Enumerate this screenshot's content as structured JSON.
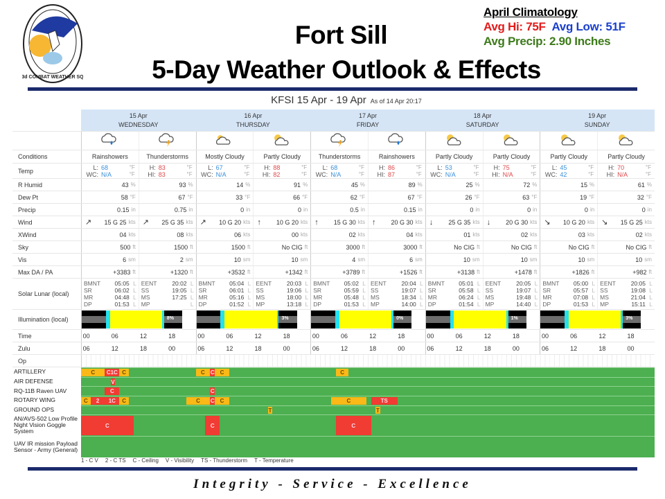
{
  "header": {
    "title_line1": "Fort Sill",
    "title_line2": "5-Day Weather Outlook & Effects",
    "logo_text": "3d COMBAT WEATHER SQ"
  },
  "climatology": {
    "heading": "April Climatology",
    "avg_hi": "Avg Hi: 75F",
    "avg_low": "Avg Low: 51F",
    "avg_precip": "Avg Precip: 2.90 Inches",
    "colors": {
      "hi": "#e21b1b",
      "low": "#1a3fcc",
      "precip": "#3d7a1a"
    }
  },
  "forecast": {
    "title": "KFSI 15 Apr - 19 Apr",
    "as_of": "As of 14 Apr 20:17"
  },
  "row_labels": {
    "conditions": "Conditions",
    "temp": "Temp",
    "rh": "R Humid",
    "dew": "Dew Pt",
    "precip": "Precip",
    "wind": "Wind",
    "xwind": "XWind",
    "sky": "Sky",
    "vis": "Vis",
    "da": "Max DA / PA",
    "solar": "Solar Lunar (local)",
    "illum": "Illumination (local)",
    "time": "Time",
    "zulu": "Zulu",
    "op": "Op"
  },
  "units": {
    "temp": "°F",
    "rh": "%",
    "dew": "°F",
    "precip": "in",
    "wind": "kts",
    "xwind": "kts",
    "sky": "ft",
    "vis": "sm",
    "da": "ft",
    "solar": "L"
  },
  "time_labels": [
    "00",
    "06",
    "12",
    "18"
  ],
  "zulu_labels": [
    "06",
    "12",
    "18",
    "00"
  ],
  "days": [
    {
      "date": "15 Apr",
      "dow": "WEDNESDAY",
      "illumination": "8%",
      "halves": [
        {
          "icon": "rain-showers-icon",
          "cond": "Rainshowers",
          "tk1": "L:",
          "tv1": "68",
          "tk2": "WC:",
          "tv2": "N/A",
          "rh": "43",
          "dew": "58",
          "precip": "0.15",
          "wdir": "↗",
          "wind": "15 G 25",
          "xwind": "04",
          "sky": "500",
          "vis": "6",
          "da": "+3383",
          "solar": [
            [
              "BMNT",
              "05:05"
            ],
            [
              "SR",
              "06:02"
            ],
            [
              "MR",
              "04:48"
            ],
            [
              "DP",
              "01:53"
            ]
          ]
        },
        {
          "icon": "thunderstorm-icon",
          "cond": "Thunderstorms",
          "tk1": "H:",
          "tv1": "83",
          "tk2": "HI:",
          "tv2": "83",
          "rh": "93",
          "dew": "67",
          "precip": "0.75",
          "wdir": "↗",
          "wind": "25 G 35",
          "xwind": "08",
          "sky": "1500",
          "vis": "2",
          "da": "+1320",
          "solar": [
            [
              "EENT",
              "20:02"
            ],
            [
              "SS",
              "19:05"
            ],
            [
              "MS",
              "17:25"
            ],
            [
              "MP",
              ""
            ]
          ]
        }
      ]
    },
    {
      "date": "16 Apr",
      "dow": "THURSDAY",
      "illumination": "3%",
      "halves": [
        {
          "icon": "mostly-cloudy-icon",
          "cond": "Mostly Cloudy",
          "tk1": "L:",
          "tv1": "67",
          "tk2": "WC:",
          "tv2": "N/A",
          "rh": "14",
          "dew": "33",
          "precip": "0",
          "wdir": "↗",
          "wind": "10 G 20",
          "xwind": "06",
          "sky": "1500",
          "vis": "10",
          "da": "+3532",
          "solar": [
            [
              "BMNT",
              "05:04"
            ],
            [
              "SR",
              "06:01"
            ],
            [
              "MR",
              "05:16"
            ],
            [
              "DP",
              "01:52"
            ]
          ]
        },
        {
          "icon": "partly-cloudy-icon",
          "cond": "Partly Cloudy",
          "tk1": "H:",
          "tv1": "88",
          "tk2": "HI:",
          "tv2": "82",
          "rh": "91",
          "dew": "66",
          "precip": "0",
          "wdir": "↑",
          "wind": "10 G 20",
          "xwind": "00",
          "sky": "No CIG",
          "vis": "10",
          "da": "+1342",
          "solar": [
            [
              "EENT",
              "20:03"
            ],
            [
              "SS",
              "19:06"
            ],
            [
              "MS",
              "18:00"
            ],
            [
              "MP",
              "13:18"
            ]
          ]
        }
      ]
    },
    {
      "date": "17 Apr",
      "dow": "FRIDAY",
      "illumination": "0%",
      "halves": [
        {
          "icon": "thunderstorm-icon",
          "cond": "Thunderstorms",
          "tk1": "L:",
          "tv1": "68",
          "tk2": "WC:",
          "tv2": "N/A",
          "rh": "45",
          "dew": "62",
          "precip": "0.5",
          "wdir": "↑",
          "wind": "15 G 30",
          "xwind": "02",
          "sky": "3000",
          "vis": "4",
          "da": "+3789",
          "solar": [
            [
              "BMNT",
              "05:02"
            ],
            [
              "SR",
              "05:59"
            ],
            [
              "MR",
              "05:48"
            ],
            [
              "DP",
              "01:53"
            ]
          ]
        },
        {
          "icon": "rain-showers-icon",
          "cond": "Rainshowers",
          "tk1": "H:",
          "tv1": "86",
          "tk2": "HI:",
          "tv2": "87",
          "rh": "89",
          "dew": "67",
          "precip": "0.15",
          "wdir": "↑",
          "wind": "20 G 30",
          "xwind": "04",
          "sky": "3000",
          "vis": "6",
          "da": "+1526",
          "solar": [
            [
              "EENT",
              "20:04"
            ],
            [
              "SS",
              "19:07"
            ],
            [
              "MS",
              "18:34"
            ],
            [
              "MP",
              "14:00"
            ]
          ]
        }
      ]
    },
    {
      "date": "18 Apr",
      "dow": "SATURDAY",
      "illumination": "1%",
      "halves": [
        {
          "icon": "partly-cloudy-icon",
          "cond": "Partly Cloudy",
          "tk1": "L:",
          "tv1": "53",
          "tk2": "WC:",
          "tv2": "N/A",
          "rh": "25",
          "dew": "26",
          "precip": "0",
          "wdir": "↓",
          "wind": "25 G 35",
          "xwind": "01",
          "sky": "No CIG",
          "vis": "10",
          "da": "+3138",
          "solar": [
            [
              "BMNT",
              "05:01"
            ],
            [
              "SR",
              "05:58"
            ],
            [
              "MR",
              "06:24"
            ],
            [
              "DP",
              "01:54"
            ]
          ]
        },
        {
          "icon": "partly-cloudy-icon",
          "cond": "Partly Cloudy",
          "tk1": "H:",
          "tv1": "75",
          "tk2": "HI:",
          "tv2": "N/A",
          "rh": "72",
          "dew": "63",
          "precip": "0",
          "wdir": "↓",
          "wind": "20 G 30",
          "xwind": "02",
          "sky": "No CIG",
          "vis": "10",
          "da": "+1478",
          "solar": [
            [
              "EENT",
              "20:05"
            ],
            [
              "SS",
              "19:07"
            ],
            [
              "MS",
              "19:48"
            ],
            [
              "MP",
              "14:40"
            ]
          ]
        }
      ]
    },
    {
      "date": "19 Apr",
      "dow": "SUNDAY",
      "illumination": "3%",
      "halves": [
        {
          "icon": "partly-cloudy-icon",
          "cond": "Partly Cloudy",
          "tk1": "L:",
          "tv1": "45",
          "tk2": "WC:",
          "tv2": "42",
          "rh": "15",
          "dew": "19",
          "precip": "0",
          "wdir": "↘",
          "wind": "10 G 20",
          "xwind": "03",
          "sky": "No CIG",
          "vis": "10",
          "da": "+1826",
          "solar": [
            [
              "BMNT",
              "05:00"
            ],
            [
              "SR",
              "05:57"
            ],
            [
              "MR",
              "07:08"
            ],
            [
              "DP",
              "01:53"
            ]
          ]
        },
        {
          "icon": "partly-cloudy-icon",
          "cond": "Partly Cloudy",
          "tk1": "H:",
          "tv1": "70",
          "tk2": "HI:",
          "tv2": "N/A",
          "rh": "61",
          "dew": "32",
          "precip": "0",
          "wdir": "↘",
          "wind": "15 G 25",
          "xwind": "02",
          "sky": "No CIG",
          "vis": "10",
          "da": "+982",
          "solar": [
            [
              "EENT",
              "20:05"
            ],
            [
              "SS",
              "19:08"
            ],
            [
              "MS",
              "21:04"
            ],
            [
              "MP",
              "15:11"
            ]
          ]
        }
      ]
    }
  ],
  "ops": [
    {
      "name": "ARTILLERY",
      "marks": [
        {
          "s": 0,
          "e": 5,
          "l": "C",
          "c": "o"
        },
        {
          "s": 5,
          "e": 8,
          "l": "C1C",
          "c": "r"
        },
        {
          "s": 8,
          "e": 10,
          "l": "C",
          "c": "o"
        },
        {
          "s": 24,
          "e": 27,
          "l": "C",
          "c": "o"
        },
        {
          "s": 27,
          "e": 28,
          "l": "C",
          "c": "r"
        },
        {
          "s": 28,
          "e": 31,
          "l": "C",
          "c": "o"
        },
        {
          "s": 53.3,
          "e": 56,
          "l": "C",
          "c": "o"
        }
      ]
    },
    {
      "name": "AIR DEFENSE",
      "marks": [
        {
          "s": 6.2,
          "e": 7.1,
          "l": "V",
          "c": "r"
        }
      ]
    },
    {
      "name": "RQ-11B Raven UAV",
      "marks": [
        {
          "s": 5,
          "e": 8,
          "l": "C",
          "c": "r"
        },
        {
          "s": 27,
          "e": 28,
          "l": "C",
          "c": "r"
        }
      ]
    },
    {
      "name": "ROTARY WING",
      "marks": [
        {
          "s": 0,
          "e": 2,
          "l": "C",
          "c": "o"
        },
        {
          "s": 2,
          "e": 5,
          "l": "2",
          "c": "r"
        },
        {
          "s": 5,
          "e": 8,
          "l": "1C",
          "c": "r"
        },
        {
          "s": 8,
          "e": 10,
          "l": "C",
          "c": "o"
        },
        {
          "s": 22,
          "e": 27,
          "l": "C",
          "c": "o"
        },
        {
          "s": 27,
          "e": 28,
          "l": "C",
          "c": "r"
        },
        {
          "s": 28,
          "e": 31,
          "l": "C",
          "c": "o"
        },
        {
          "s": 52.3,
          "e": 59.7,
          "l": "C",
          "c": "o"
        },
        {
          "s": 60.7,
          "e": 66.2,
          "l": "TS",
          "c": "r"
        }
      ]
    },
    {
      "name": "GROUND OPS",
      "marks": [
        {
          "s": 39.1,
          "e": 40,
          "l": "T",
          "c": "o"
        },
        {
          "s": 61.6,
          "e": 62.6,
          "l": "T",
          "c": "o"
        }
      ]
    },
    {
      "name": "AN/AVS-502 Low Profile Night Vision Goggle System",
      "tall": true,
      "marks": [
        {
          "s": 0,
          "e": 11,
          "l": "C",
          "c": "r"
        },
        {
          "s": 26,
          "e": 29,
          "l": "C",
          "c": "r"
        },
        {
          "s": 53.3,
          "e": 60.7,
          "l": "C",
          "c": "r"
        }
      ]
    },
    {
      "name": "UAV IR mission Payload Sensor - Army (General)",
      "tall": true,
      "marks": []
    }
  ],
  "legend": [
    "1 - C V",
    "2 - C TS",
    "C - Ceiling",
    "V - Visibility",
    "TS - Thunderstorm",
    "T - Temperature"
  ],
  "footer": "Integrity - Service - Excellence",
  "colors": {
    "go": "#4caf50",
    "marginal": "#fbb917",
    "nogo": "#f03c32",
    "header_blue": "#d5e5f6",
    "rule": "#1b2a6b"
  }
}
